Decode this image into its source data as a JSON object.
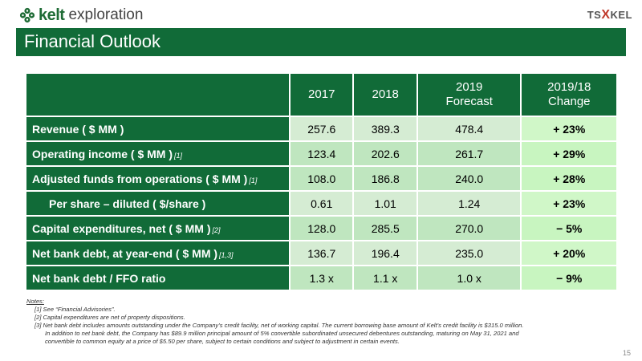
{
  "header": {
    "logo_brand": "kelt",
    "logo_word": "exploration",
    "exchange_logo": {
      "left": "TS",
      "mark": "X",
      "right": "KEL"
    },
    "title": "Financial Outlook"
  },
  "table": {
    "columns": [
      {
        "line1": "2017",
        "line2": ""
      },
      {
        "line1": "2018",
        "line2": ""
      },
      {
        "line1": "2019",
        "line2": "Forecast"
      },
      {
        "line1": "2019/18",
        "line2": "Change"
      }
    ],
    "rows": [
      {
        "label": "Revenue ( $ MM )",
        "note": "",
        "values": [
          "257.6",
          "389.3",
          "478.4",
          "+ 23%"
        ]
      },
      {
        "label": "Operating income ( $ MM )",
        "note": "[1]",
        "values": [
          "123.4",
          "202.6",
          "261.7",
          "+ 29%"
        ]
      },
      {
        "label": "Adjusted funds from operations ( $ MM )",
        "note": "[1]",
        "values": [
          "108.0",
          "186.8",
          "240.0",
          "+ 28%"
        ]
      },
      {
        "label": "Per share – diluted ( $/share )",
        "note": "",
        "values": [
          "0.61",
          "1.01",
          "1.24",
          "+ 23%"
        ]
      },
      {
        "label": "Capital expenditures, net ( $ MM )",
        "note": "[2]",
        "values": [
          "128.0",
          "285.5",
          "270.0",
          "− 5%"
        ]
      },
      {
        "label": "Net bank debt, at year-end ( $ MM )",
        "note": "[1,3]",
        "values": [
          "136.7",
          "196.4",
          "235.0",
          "+ 20%"
        ]
      },
      {
        "label": "Net bank debt / FFO ratio",
        "note": "",
        "values": [
          "1.3 x",
          "1.1 x",
          "1.0 x",
          "− 9%"
        ]
      }
    ]
  },
  "notes": {
    "heading": "Notes:",
    "items": [
      "[1]  See “Financial Advisories”.",
      "[2]  Capital expenditures are net of property dispositions.",
      "[3]  Net bank debt includes amounts outstanding under the Company’s credit facility, net of working capital. The current borrowing base amount of Kelt’s credit facility is $315.0 million.",
      "In addition to net bank debt, the Company has $89.9 million principal amount of 5% convertible subordinated unsecured debentures outstanding, maturing on May 31, 2021 and",
      "convertible to common equity at a price of $5.50 per share, subject to certain conditions and subject to adjustment in certain events."
    ]
  },
  "page_number": "15",
  "colors": {
    "brand_green": "#116b38",
    "cell_light": "#d5ecd3",
    "cell_mid": "#bfe6bf",
    "change_cell": "#c8f5c0"
  }
}
